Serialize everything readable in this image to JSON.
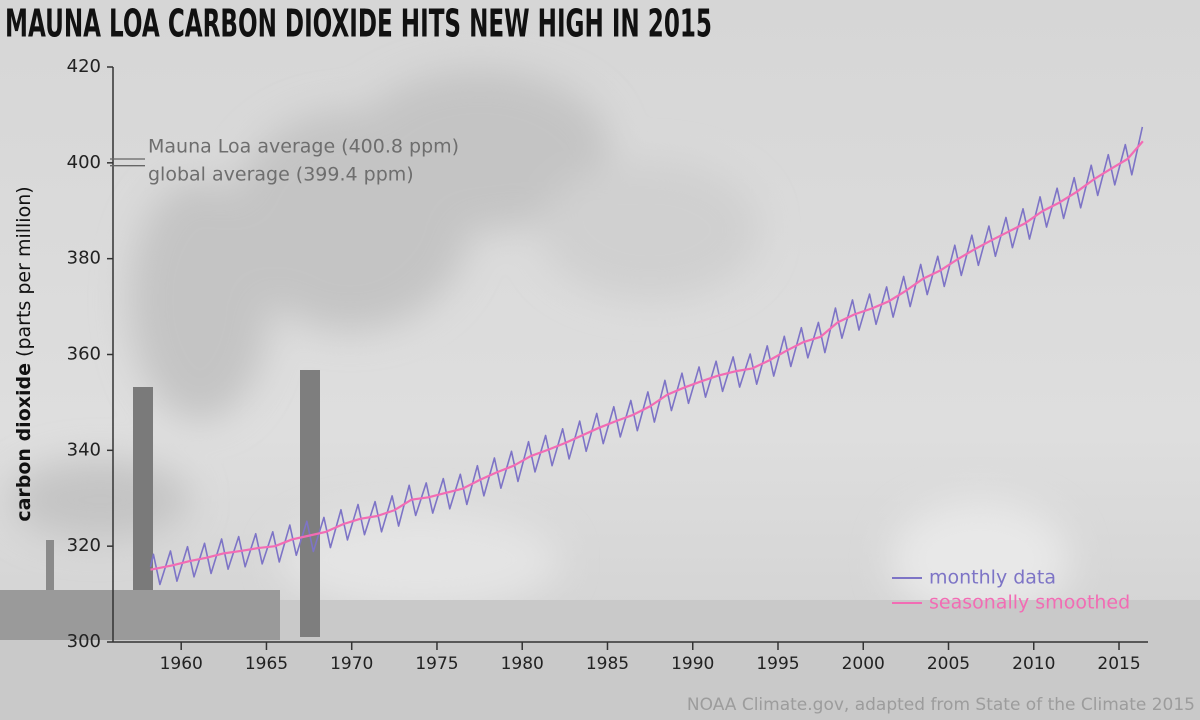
{
  "chart_data": {
    "type": "line",
    "title": "MAUNA LOA CARBON DIOXIDE HITS NEW HIGH IN 2015",
    "ylabel": "carbon dioxide",
    "ylabel_unit": "(parts per million)",
    "source": "NOAA Climate.gov, adapted from State of the Climate 2015",
    "xlim": [
      1956,
      2016.7
    ],
    "ylim": [
      300,
      420
    ],
    "xticks": [
      1960,
      1965,
      1970,
      1975,
      1980,
      1985,
      1990,
      1995,
      2000,
      2005,
      2010,
      2015
    ],
    "yticks": [
      300,
      320,
      340,
      360,
      380,
      400,
      420
    ],
    "grid": false,
    "legend": "lower right",
    "annotations": [
      {
        "text": "Mauna Loa average (400.8 ppm)",
        "value": 400.8
      },
      {
        "text": "global average (399.4 ppm)",
        "value": 399.4
      }
    ],
    "series": [
      {
        "name": "monthly data",
        "color": "#7d74c6",
        "x": [
          1958.2,
          1958.37,
          1958.75,
          1959.37,
          1959.75,
          1960.37,
          1960.75,
          1961.37,
          1961.75,
          1962.37,
          1962.75,
          1963.37,
          1963.75,
          1964.37,
          1964.75,
          1965.37,
          1965.75,
          1966.37,
          1966.75,
          1967.37,
          1967.75,
          1968.37,
          1968.75,
          1969.37,
          1969.75,
          1970.37,
          1970.75,
          1971.37,
          1971.75,
          1972.37,
          1972.75,
          1973.37,
          1973.75,
          1974.37,
          1974.75,
          1975.37,
          1975.75,
          1976.37,
          1976.75,
          1977.37,
          1977.75,
          1978.37,
          1978.75,
          1979.37,
          1979.75,
          1980.37,
          1980.75,
          1981.37,
          1981.75,
          1982.37,
          1982.75,
          1983.37,
          1983.75,
          1984.37,
          1984.75,
          1985.37,
          1985.75,
          1986.37,
          1986.75,
          1987.37,
          1987.75,
          1988.37,
          1988.75,
          1989.37,
          1989.75,
          1990.37,
          1990.75,
          1991.37,
          1991.75,
          1992.37,
          1992.75,
          1993.37,
          1993.75,
          1994.37,
          1994.75,
          1995.37,
          1995.75,
          1996.37,
          1996.75,
          1997.37,
          1997.75,
          1998.37,
          1998.75,
          1999.37,
          1999.75,
          2000.37,
          2000.75,
          2001.37,
          2001.75,
          2002.37,
          2002.75,
          2003.37,
          2003.75,
          2004.37,
          2004.75,
          2005.37,
          2005.75,
          2006.37,
          2006.75,
          2007.37,
          2007.75,
          2008.37,
          2008.75,
          2009.37,
          2009.75,
          2010.37,
          2010.75,
          2011.37,
          2011.75,
          2012.37,
          2012.75,
          2013.37,
          2013.75,
          2014.37,
          2014.75,
          2015.37,
          2015.75,
          2016.37
        ],
        "values": [
          315.7,
          318.3,
          312.0,
          319.0,
          312.7,
          319.9,
          313.6,
          320.6,
          314.3,
          321.5,
          315.2,
          322.0,
          315.7,
          322.6,
          316.3,
          323.0,
          316.7,
          324.4,
          318.1,
          325.2,
          318.9,
          326.0,
          319.7,
          327.6,
          321.3,
          328.7,
          322.4,
          329.3,
          323.0,
          330.5,
          324.2,
          332.7,
          326.4,
          333.2,
          326.9,
          334.1,
          327.8,
          335.0,
          328.7,
          336.8,
          330.5,
          338.4,
          332.1,
          339.8,
          333.5,
          341.8,
          335.5,
          343.1,
          336.8,
          344.5,
          338.2,
          346.1,
          339.8,
          347.7,
          341.4,
          349.1,
          342.8,
          350.4,
          344.1,
          352.2,
          345.9,
          354.6,
          348.3,
          356.1,
          349.8,
          357.4,
          351.1,
          358.6,
          352.3,
          359.5,
          353.2,
          360.1,
          353.8,
          361.8,
          355.5,
          363.8,
          357.5,
          365.6,
          359.3,
          366.7,
          360.4,
          369.7,
          363.4,
          371.4,
          365.1,
          372.6,
          366.3,
          374.1,
          367.8,
          376.3,
          370.0,
          378.8,
          372.5,
          380.5,
          374.2,
          382.8,
          376.5,
          384.9,
          378.6,
          386.8,
          380.5,
          388.6,
          382.3,
          390.4,
          384.1,
          392.9,
          386.6,
          394.7,
          388.4,
          396.9,
          390.6,
          399.5,
          393.2,
          401.7,
          395.4,
          403.8,
          397.5,
          407.5
        ]
      },
      {
        "name": "seasonally smoothed",
        "color": "#f26cb4",
        "x": [
          1958.2,
          1958.5,
          1959.5,
          1960.5,
          1961.5,
          1962.5,
          1963.5,
          1964.5,
          1965.5,
          1966.5,
          1967.5,
          1968.5,
          1969.5,
          1970.5,
          1971.5,
          1972.5,
          1973.5,
          1974.5,
          1975.5,
          1976.5,
          1977.5,
          1978.5,
          1979.5,
          1980.5,
          1981.5,
          1982.5,
          1983.5,
          1984.5,
          1985.5,
          1986.5,
          1987.5,
          1988.5,
          1989.5,
          1990.5,
          1991.5,
          1992.5,
          1993.5,
          1994.5,
          1995.5,
          1996.5,
          1997.5,
          1998.5,
          1999.5,
          2000.5,
          2001.5,
          2002.5,
          2003.5,
          2004.5,
          2005.5,
          2006.5,
          2007.5,
          2008.5,
          2009.5,
          2010.5,
          2011.5,
          2012.5,
          2013.5,
          2014.5,
          2015.5,
          2016.4
        ],
        "values": [
          315.1,
          315.3,
          316.0,
          316.9,
          317.6,
          318.5,
          319.0,
          319.6,
          320.0,
          321.4,
          322.2,
          323.0,
          324.6,
          325.7,
          326.3,
          327.5,
          329.7,
          330.2,
          331.1,
          332.0,
          333.8,
          335.4,
          336.8,
          338.8,
          340.1,
          341.5,
          343.1,
          344.7,
          346.1,
          347.4,
          349.2,
          351.6,
          353.1,
          354.4,
          355.6,
          356.5,
          357.1,
          358.8,
          360.8,
          362.6,
          363.7,
          366.7,
          368.4,
          369.6,
          371.1,
          373.3,
          375.8,
          377.5,
          379.8,
          381.9,
          383.8,
          385.6,
          387.4,
          389.9,
          391.7,
          393.9,
          396.5,
          398.7,
          400.8,
          404.5
        ]
      }
    ]
  }
}
